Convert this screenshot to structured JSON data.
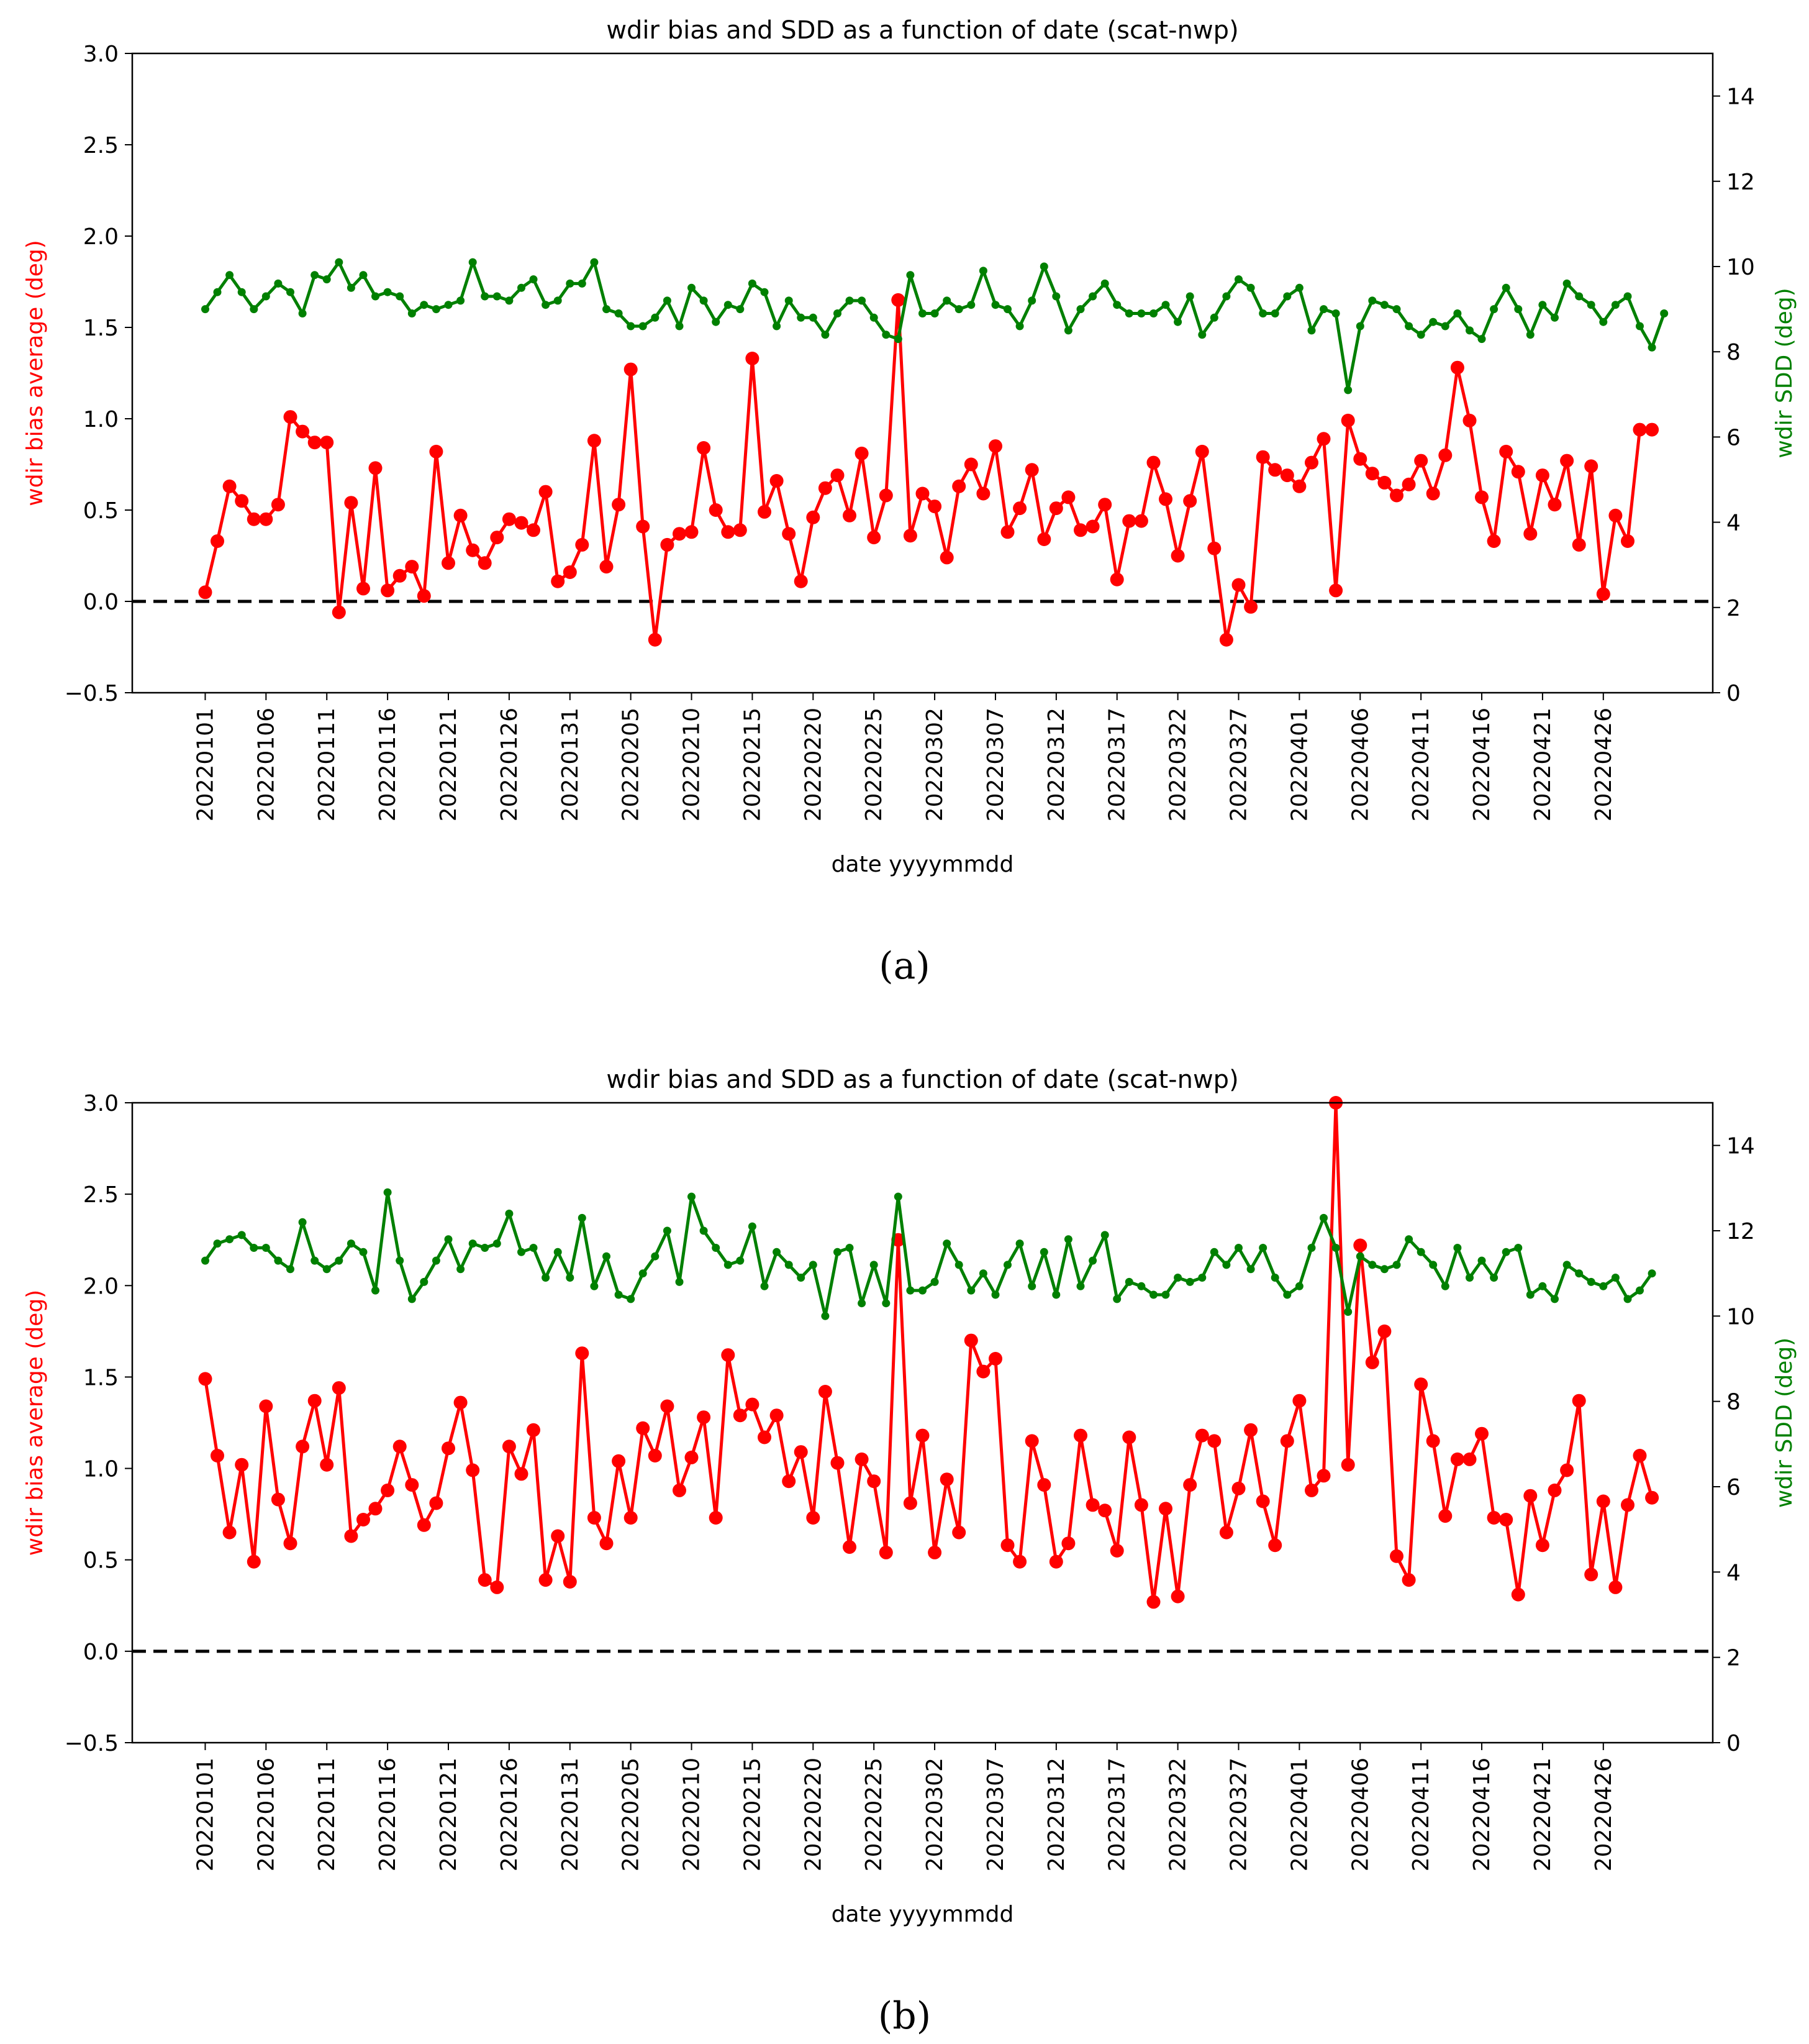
{
  "figure": {
    "panel_labels": [
      "(a)",
      "(b)"
    ]
  },
  "chart_data": [
    {
      "type": "line",
      "panel": "(a)",
      "title": "wdir bias and SDD as a function of date (scat-nwp)",
      "xlabel": "date yyyymmdd",
      "ylabel": "wdir bias average (deg)",
      "y2label": "wdir SDD (deg)",
      "ylim": [
        -0.5,
        3.0
      ],
      "y2lim": [
        0,
        15
      ],
      "yticks": [
        "−0.5",
        "0.0",
        "0.5",
        "1.0",
        "1.5",
        "2.0",
        "2.5",
        "3.0"
      ],
      "yticks_values": [
        -0.5,
        0,
        0.5,
        1.0,
        1.5,
        2.0,
        2.5,
        3.0
      ],
      "y2ticks": [
        "0",
        "2",
        "4",
        "6",
        "8",
        "10",
        "12",
        "14"
      ],
      "y2ticks_values": [
        0,
        2,
        4,
        6,
        8,
        10,
        12,
        14
      ],
      "xticks": [
        "20220101",
        "20220106",
        "20220111",
        "20220116",
        "20220121",
        "20220126",
        "20220131",
        "20220205",
        "20220210",
        "20220215",
        "20220220",
        "20220225",
        "20220302",
        "20220307",
        "20220312",
        "20220317",
        "20220322",
        "20220327",
        "20220401",
        "20220406",
        "20220411",
        "20220416",
        "20220421",
        "20220426"
      ],
      "xticks_index": [
        0,
        5,
        10,
        15,
        20,
        25,
        30,
        35,
        40,
        45,
        50,
        55,
        60,
        65,
        70,
        75,
        80,
        85,
        90,
        95,
        100,
        105,
        110,
        115
      ],
      "xlim_index": [
        -6,
        124
      ],
      "reference_line": {
        "y": 0.0,
        "style": "dashed",
        "color": "#000000"
      },
      "series": [
        {
          "name": "wdir bias average",
          "axis": "left",
          "color": "#ff0000",
          "marker_size": "large",
          "values": [
            0.05,
            0.33,
            0.63,
            0.55,
            0.45,
            0.45,
            0.53,
            1.01,
            0.93,
            0.87,
            0.87,
            -0.06,
            0.54,
            0.07,
            0.73,
            0.06,
            0.14,
            0.19,
            0.03,
            0.82,
            0.21,
            0.47,
            0.28,
            0.21,
            0.35,
            0.45,
            0.43,
            0.39,
            0.6,
            0.11,
            0.16,
            0.31,
            0.88,
            0.19,
            0.53,
            1.27,
            0.41,
            -0.21,
            0.31,
            0.37,
            0.38,
            0.84,
            0.5,
            0.38,
            0.39,
            1.33,
            0.49,
            0.66,
            0.37,
            0.11,
            0.46,
            0.62,
            0.69,
            0.47,
            0.81,
            0.35,
            0.58,
            1.65,
            0.36,
            0.59,
            0.52,
            0.24,
            0.63,
            0.75,
            0.59,
            0.85,
            0.38,
            0.51,
            0.72,
            0.34,
            0.51,
            0.57,
            0.39,
            0.41,
            0.53,
            0.12,
            0.44,
            0.44,
            0.76,
            0.56,
            0.25,
            0.55,
            0.82,
            0.29,
            -0.21,
            0.09,
            -0.03,
            0.79,
            0.72,
            0.69,
            0.63,
            0.76,
            0.89,
            0.06,
            0.99,
            0.78,
            0.7,
            0.65,
            0.58,
            0.64,
            0.77,
            0.59,
            0.8,
            1.28,
            0.99,
            0.57,
            0.33,
            0.82,
            0.71,
            0.37,
            0.69,
            0.53,
            0.77,
            0.31,
            0.74,
            0.04,
            0.47,
            0.33,
            0.94,
            0.94
          ]
        },
        {
          "name": "wdir SDD",
          "axis": "right",
          "color": "#008000",
          "marker_size": "small",
          "values": [
            9.0,
            9.4,
            9.8,
            9.4,
            9.0,
            9.3,
            9.6,
            9.4,
            8.9,
            9.8,
            9.7,
            10.1,
            9.5,
            9.8,
            9.3,
            9.4,
            9.3,
            8.9,
            9.1,
            9.0,
            9.1,
            9.2,
            10.1,
            9.3,
            9.3,
            9.2,
            9.5,
            9.7,
            9.1,
            9.2,
            9.6,
            9.6,
            10.1,
            9.0,
            8.9,
            8.6,
            8.6,
            8.8,
            9.2,
            8.6,
            9.5,
            9.2,
            8.7,
            9.1,
            9.0,
            9.6,
            9.4,
            8.6,
            9.2,
            8.8,
            8.8,
            8.4,
            8.9,
            9.2,
            9.2,
            8.8,
            8.4,
            8.3,
            9.8,
            8.9,
            8.9,
            9.2,
            9.0,
            9.1,
            9.9,
            9.1,
            9.0,
            8.6,
            9.2,
            10.0,
            9.3,
            8.5,
            9.0,
            9.3,
            9.6,
            9.1,
            8.9,
            8.9,
            8.9,
            9.1,
            8.7,
            9.3,
            8.4,
            8.8,
            9.3,
            9.7,
            9.5,
            8.9,
            8.9,
            9.3,
            9.5,
            8.5,
            9.0,
            8.9,
            7.1,
            8.6,
            9.2,
            9.1,
            9.0,
            8.6,
            8.4,
            8.7,
            8.6,
            8.9,
            8.5,
            8.3,
            9.0,
            9.5,
            9.0,
            8.4,
            9.1,
            8.8,
            9.6,
            9.3,
            9.1,
            8.7,
            9.1,
            9.3,
            8.6,
            8.1,
            8.9
          ]
        }
      ]
    },
    {
      "type": "line",
      "panel": "(b)",
      "title": "wdir bias and SDD as a function of date (scat-nwp)",
      "xlabel": "date yyyymmdd",
      "ylabel": "wdir bias average (deg)",
      "y2label": "wdir SDD (deg)",
      "ylim": [
        -0.5,
        3.0
      ],
      "y2lim": [
        0,
        15
      ],
      "yticks": [
        "−0.5",
        "0.0",
        "0.5",
        "1.0",
        "1.5",
        "2.0",
        "2.5",
        "3.0"
      ],
      "yticks_values": [
        -0.5,
        0,
        0.5,
        1.0,
        1.5,
        2.0,
        2.5,
        3.0
      ],
      "y2ticks": [
        "0",
        "2",
        "4",
        "6",
        "8",
        "10",
        "12",
        "14"
      ],
      "y2ticks_values": [
        0,
        2,
        4,
        6,
        8,
        10,
        12,
        14
      ],
      "xticks": [
        "20220101",
        "20220106",
        "20220111",
        "20220116",
        "20220121",
        "20220126",
        "20220131",
        "20220205",
        "20220210",
        "20220215",
        "20220220",
        "20220225",
        "20220302",
        "20220307",
        "20220312",
        "20220317",
        "20220322",
        "20220327",
        "20220401",
        "20220406",
        "20220411",
        "20220416",
        "20220421",
        "20220426"
      ],
      "xticks_index": [
        0,
        5,
        10,
        15,
        20,
        25,
        30,
        35,
        40,
        45,
        50,
        55,
        60,
        65,
        70,
        75,
        80,
        85,
        90,
        95,
        100,
        105,
        110,
        115
      ],
      "xlim_index": [
        -6,
        124
      ],
      "reference_line": {
        "y": 0.0,
        "style": "dashed",
        "color": "#000000"
      },
      "series": [
        {
          "name": "wdir bias average",
          "axis": "left",
          "color": "#ff0000",
          "marker_size": "large",
          "values": [
            1.49,
            1.07,
            0.65,
            1.02,
            0.49,
            1.34,
            0.83,
            0.59,
            1.12,
            1.37,
            1.02,
            1.44,
            0.63,
            0.72,
            0.78,
            0.88,
            1.12,
            0.91,
            0.69,
            0.81,
            1.11,
            1.36,
            0.99,
            0.39,
            0.35,
            1.12,
            0.97,
            1.21,
            0.39,
            0.63,
            0.38,
            1.63,
            0.73,
            0.59,
            1.04,
            0.73,
            1.22,
            1.07,
            1.34,
            0.88,
            1.06,
            1.28,
            0.73,
            1.62,
            1.29,
            1.35,
            1.17,
            1.29,
            0.93,
            1.09,
            0.73,
            1.42,
            1.03,
            0.57,
            1.05,
            0.93,
            0.54,
            2.25,
            0.81,
            1.18,
            0.54,
            0.94,
            0.65,
            1.7,
            1.53,
            1.6,
            0.58,
            0.49,
            1.15,
            0.91,
            0.49,
            0.59,
            1.18,
            0.8,
            0.77,
            0.55,
            1.17,
            0.8,
            0.27,
            0.78,
            0.3,
            0.91,
            1.18,
            1.15,
            0.65,
            0.89,
            1.21,
            0.82,
            0.58,
            1.15,
            1.37,
            0.88,
            0.96,
            3.0,
            1.02,
            2.22,
            1.58,
            1.75,
            0.52,
            0.39,
            1.46,
            1.15,
            0.74,
            1.05,
            1.05,
            1.19,
            0.73,
            0.72,
            0.31,
            0.85,
            0.58,
            0.88,
            0.99,
            1.37,
            0.42,
            0.82,
            0.35,
            0.8,
            1.07,
            0.84
          ]
        },
        {
          "name": "wdir SDD",
          "axis": "right",
          "color": "#008000",
          "marker_size": "small",
          "values": [
            11.3,
            11.7,
            11.8,
            11.9,
            11.6,
            11.6,
            11.3,
            11.1,
            12.2,
            11.3,
            11.1,
            11.3,
            11.7,
            11.5,
            10.6,
            12.9,
            11.3,
            10.4,
            10.8,
            11.3,
            11.8,
            11.1,
            11.7,
            11.6,
            11.7,
            12.4,
            11.5,
            11.6,
            10.9,
            11.5,
            10.9,
            12.3,
            10.7,
            11.4,
            10.5,
            10.4,
            11.0,
            11.4,
            12.0,
            10.8,
            12.8,
            12.0,
            11.6,
            11.2,
            11.3,
            12.1,
            10.7,
            11.5,
            11.2,
            10.9,
            11.2,
            10.0,
            11.5,
            11.6,
            10.3,
            11.2,
            10.3,
            12.8,
            10.6,
            10.6,
            10.8,
            11.7,
            11.2,
            10.6,
            11.0,
            10.5,
            11.2,
            11.7,
            10.7,
            11.5,
            10.5,
            11.8,
            10.7,
            11.3,
            11.9,
            10.4,
            10.8,
            10.7,
            10.5,
            10.5,
            10.9,
            10.8,
            10.9,
            11.5,
            11.2,
            11.6,
            11.1,
            11.6,
            10.9,
            10.5,
            10.7,
            11.6,
            12.3,
            11.6,
            10.1,
            11.4,
            11.2,
            11.1,
            11.2,
            11.8,
            11.5,
            11.2,
            10.7,
            11.6,
            10.9,
            11.3,
            10.9,
            11.5,
            11.6,
            10.5,
            10.7,
            10.4,
            11.2,
            11.0,
            10.8,
            10.7,
            10.9,
            10.4,
            10.6,
            11.0
          ]
        }
      ]
    }
  ]
}
